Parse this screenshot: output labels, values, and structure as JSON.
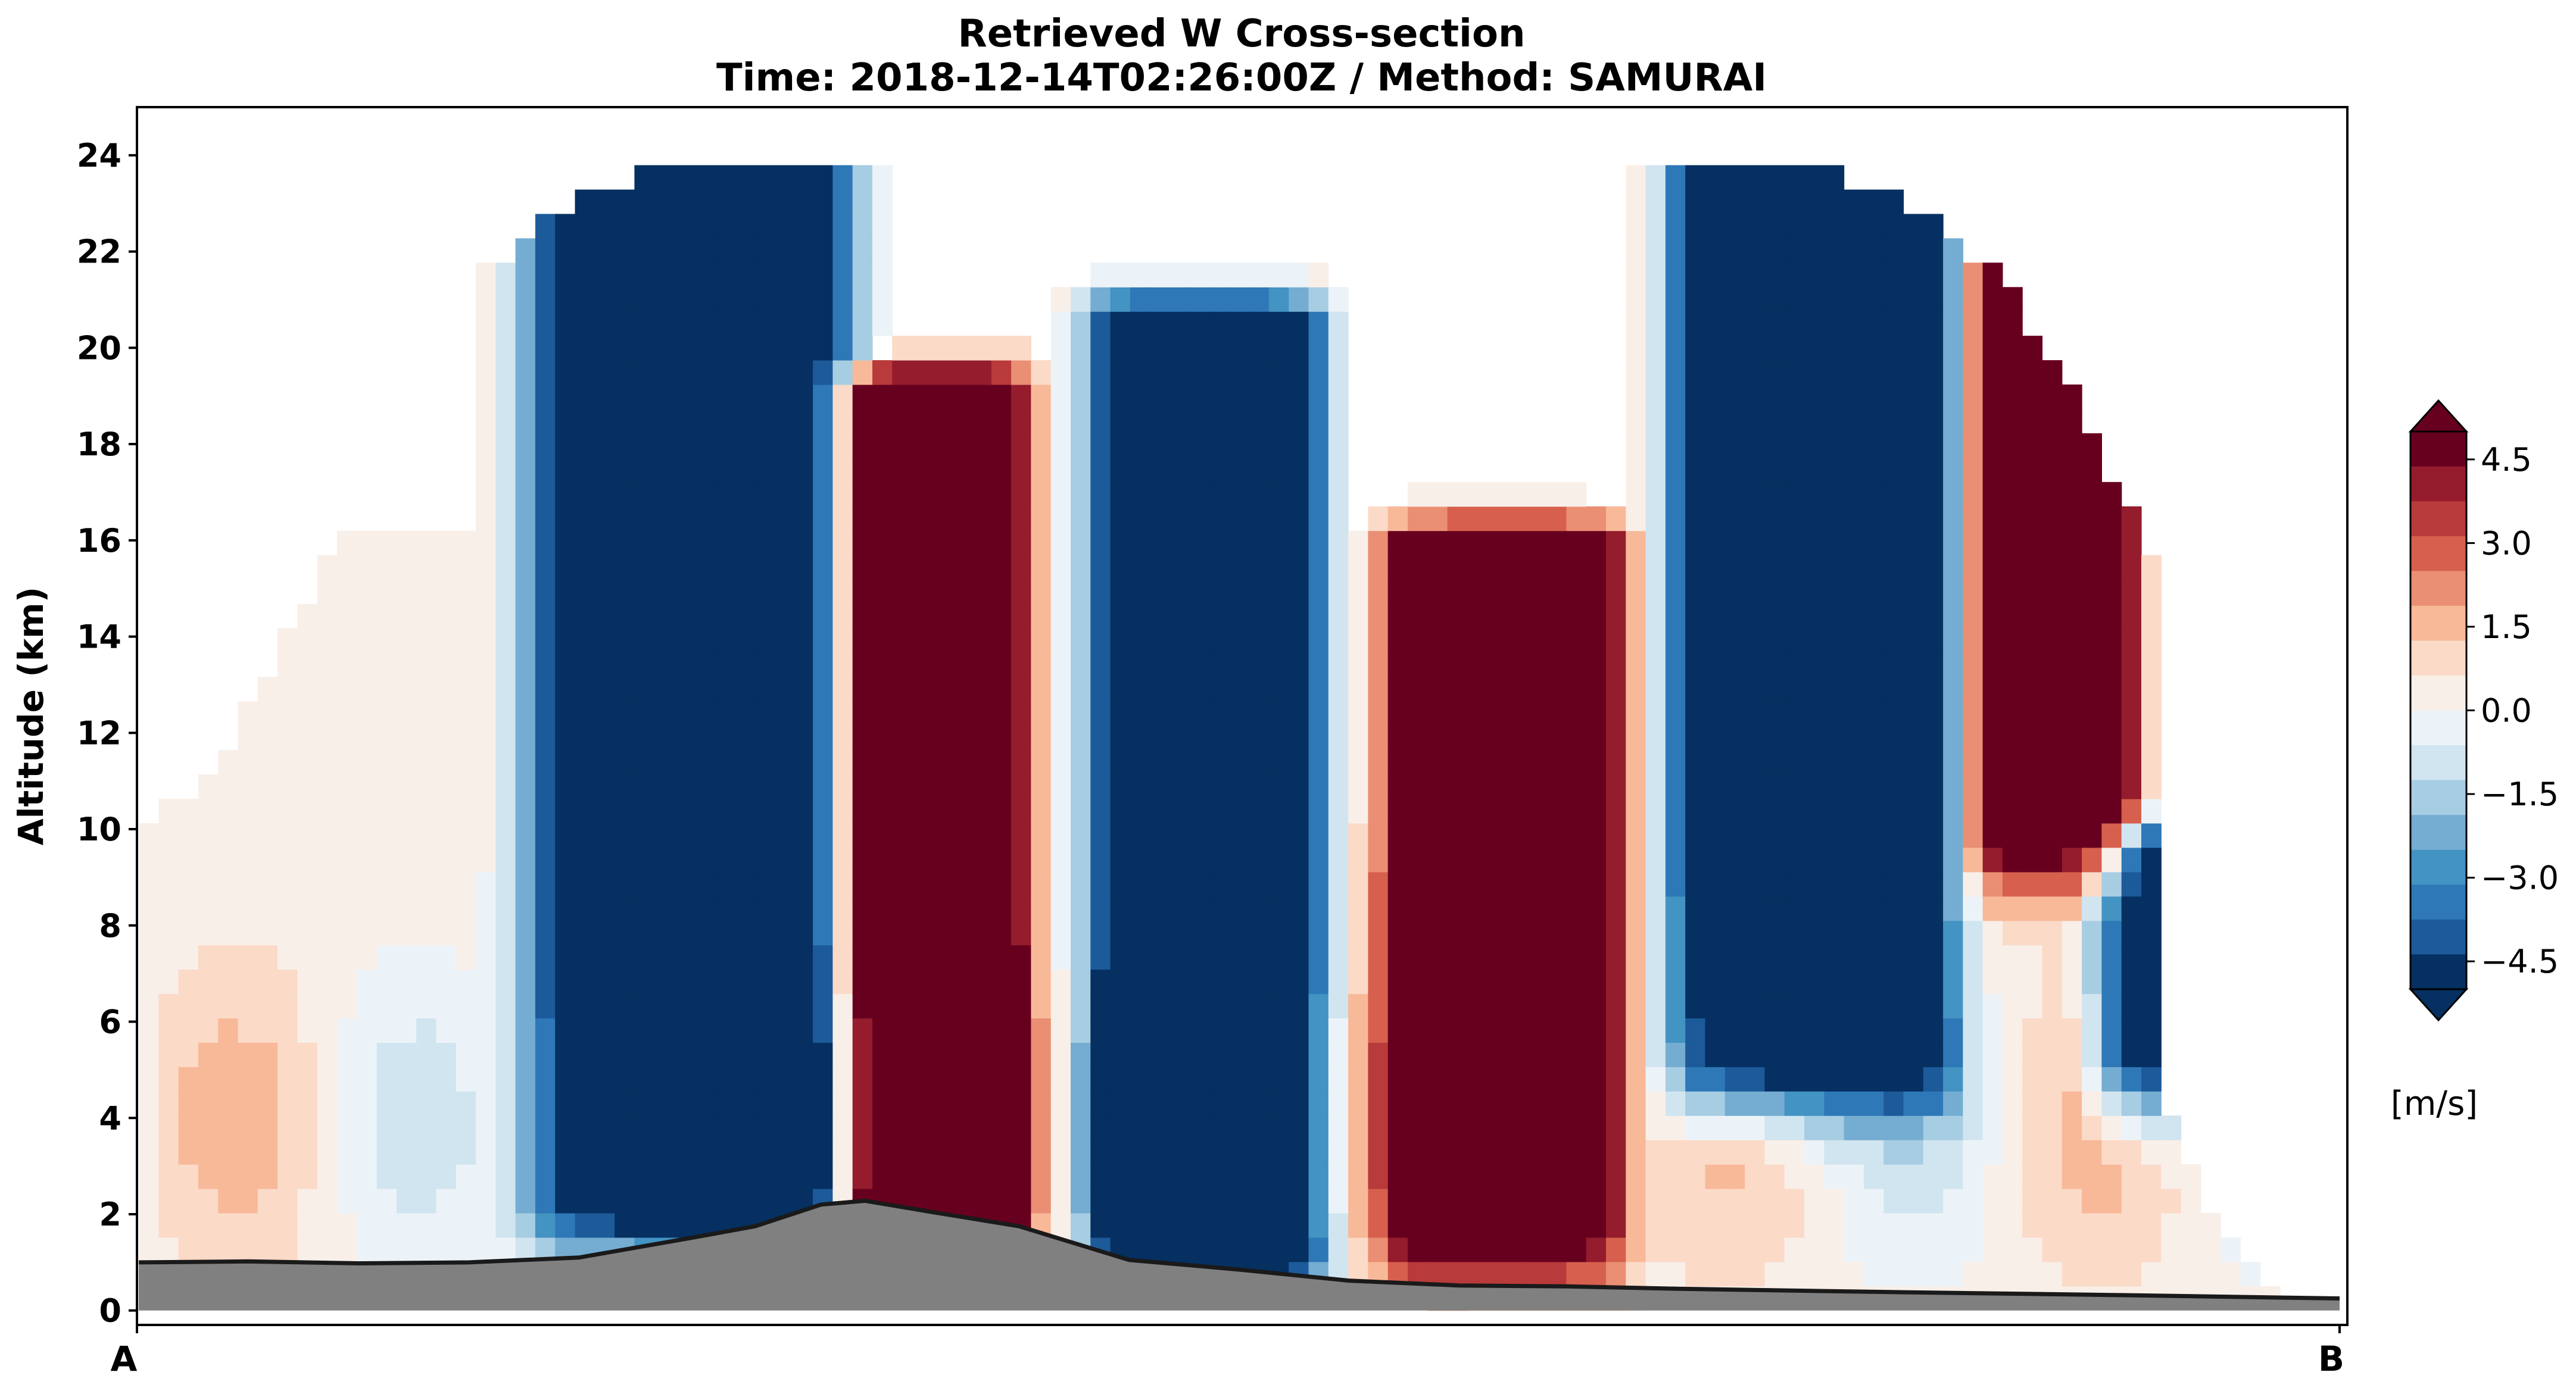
{
  "chart_data": {
    "type": "heatmap",
    "title": "Retrieved W Cross-section",
    "subtitle": "Time: 2018-12-14T02:26:00Z / Method: SAMURAI",
    "xlabel": "",
    "ylabel": "Altitude (km)",
    "x_tick_labels": [
      "A",
      "B"
    ],
    "y_ticks": [
      0,
      2,
      4,
      6,
      8,
      10,
      12,
      14,
      16,
      18,
      20,
      22,
      24
    ],
    "ylim": [
      -0.3,
      25
    ],
    "colorbar": {
      "unit": "[m/s]",
      "tick_values": [
        4.5,
        3.0,
        1.5,
        0.0,
        -1.5,
        -3.0,
        -4.5
      ],
      "tick_labels": [
        "4.5",
        "3.0",
        "1.5",
        "0.0",
        "−1.5",
        "−3.0",
        "−4.5"
      ],
      "range": [
        -5,
        5
      ],
      "colormap": "RdBu_r",
      "extend": "both",
      "colors": [
        "#053061",
        "#1d5a9a",
        "#2e78b7",
        "#4393c3",
        "#74add1",
        "#a7cde3",
        "#d1e5f0",
        "#ecf3f8",
        "#f9efe9",
        "#fbdac8",
        "#f8b999",
        "#ea8f73",
        "#d6604d",
        "#b93a3a",
        "#941c2c",
        "#67001f"
      ]
    },
    "columns": {
      "count": 111,
      "note": "x position 0 = A, 1 = B",
      "cells": [
        {
          "x0": 0.01,
          "x1": 0.045,
          "z0": 2.4,
          "z1": 6.0,
          "w": 1.2
        },
        {
          "x0": 0.045,
          "x1": 0.1,
          "z0": 2.4,
          "z1": 9.0,
          "w": 0.6
        },
        {
          "x0": 0.03,
          "x1": 0.06,
          "z0": 14.0,
          "z1": 18.0,
          "w": 0.3
        }
      ]
    },
    "updraft_columns": [
      {
        "x_center": 0.36,
        "width": 0.09,
        "z_top": 19.0,
        "z_bottom": 1.6,
        "w": 5.5
      },
      {
        "x_center": 0.62,
        "width": 0.11,
        "z_top": 15.8,
        "z_bottom": 2.0,
        "w": 5.5
      },
      {
        "x_center": 0.87,
        "width": 0.075,
        "z_top": 24.3,
        "z_bottom": 10.3,
        "w": 5.5
      }
    ],
    "downdraft_columns": [
      {
        "x_center": 0.25,
        "width": 0.15,
        "z_top": 23.8,
        "z_bottom": 2.5,
        "w": -5.5
      },
      {
        "x_center": 0.485,
        "width": 0.11,
        "z_top": 20.5,
        "z_bottom": 1.4,
        "w": -5.5
      },
      {
        "x_center": 0.76,
        "width": 0.13,
        "z_top": 23.5,
        "z_bottom": 5.5,
        "w": -5.5
      },
      {
        "x_center": 0.95,
        "width": 0.12,
        "z_top": 9.5,
        "z_bottom": 5.5,
        "w": -5.5
      }
    ],
    "terrain_profile": {
      "x": [
        0.0,
        0.05,
        0.1,
        0.15,
        0.2,
        0.25,
        0.28,
        0.31,
        0.33,
        0.36,
        0.4,
        0.45,
        0.5,
        0.55,
        0.6,
        0.65,
        0.7,
        0.8,
        0.9,
        1.0
      ],
      "z": [
        1.0,
        1.02,
        0.98,
        1.0,
        1.1,
        1.5,
        1.75,
        2.2,
        2.28,
        2.05,
        1.75,
        1.05,
        0.85,
        0.62,
        0.52,
        0.5,
        0.45,
        0.38,
        0.32,
        0.25
      ]
    }
  }
}
